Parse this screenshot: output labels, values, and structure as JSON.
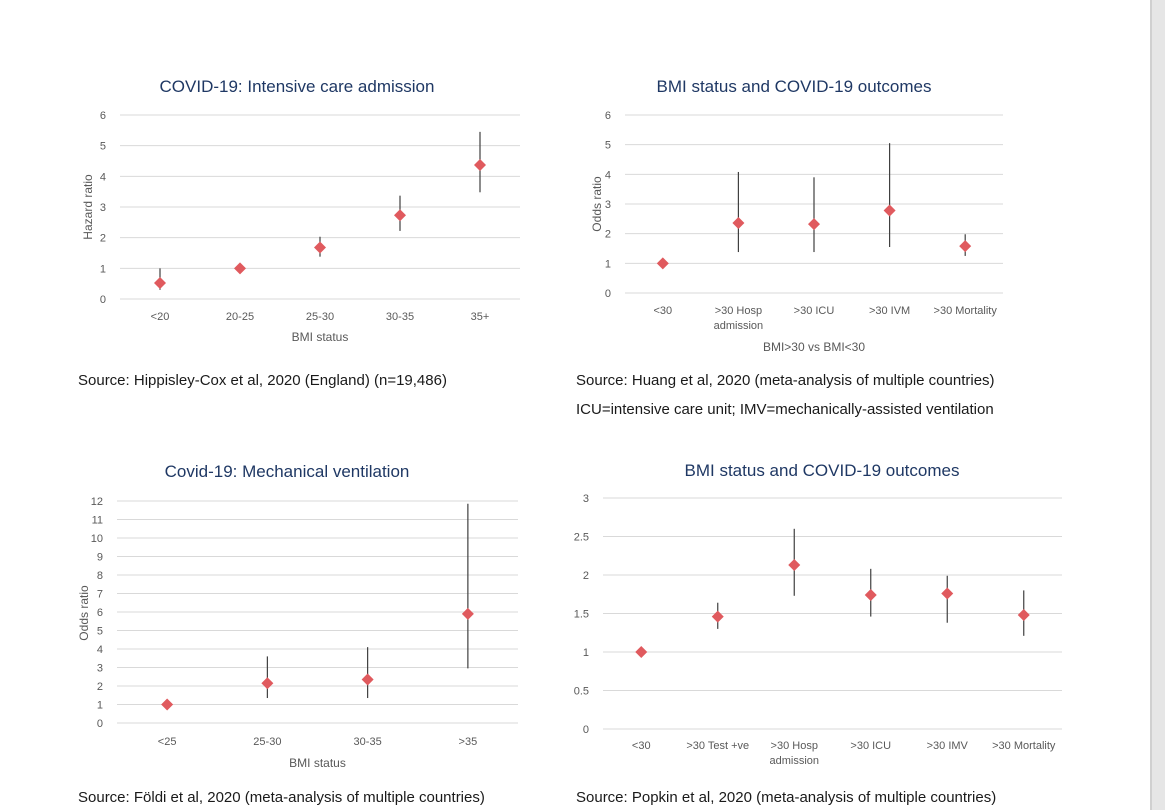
{
  "chart_data": [
    {
      "type": "scatter",
      "title": "COVID-19: Intensive care admission",
      "xlabel": "BMI status",
      "ylabel": "Hazard ratio",
      "ylim": [
        0,
        6
      ],
      "yticks": [
        0,
        1,
        2,
        3,
        4,
        5,
        6
      ],
      "grid": true,
      "categories": [
        [
          "<20"
        ],
        [
          "20-25"
        ],
        [
          "25-30"
        ],
        [
          "30-35"
        ],
        [
          "35+"
        ]
      ],
      "values": [
        0.52,
        1.0,
        1.68,
        2.73,
        4.37
      ],
      "errors": [
        [
          0.3,
          1.0
        ],
        [
          1.0,
          1.0
        ],
        [
          1.38,
          2.03
        ],
        [
          2.22,
          3.37
        ],
        [
          3.48,
          5.45
        ]
      ]
    },
    {
      "type": "scatter",
      "title": "BMI status and COVID-19 outcomes",
      "xlabel": "BMI>30 vs BMI<30",
      "ylabel": "Odds ratio",
      "ylim": [
        0,
        6
      ],
      "yticks": [
        0,
        1,
        2,
        3,
        4,
        5,
        6
      ],
      "grid": true,
      "categories": [
        [
          "<30"
        ],
        [
          ">30 Hosp",
          "admission"
        ],
        [
          ">30 ICU"
        ],
        [
          ">30 IVM"
        ],
        [
          ">30 Mortality"
        ]
      ],
      "values": [
        1.0,
        2.36,
        2.32,
        2.78,
        1.58
      ],
      "errors": [
        [
          1.0,
          1.0
        ],
        [
          1.38,
          4.08
        ],
        [
          1.38,
          3.9
        ],
        [
          1.55,
          5.05
        ],
        [
          1.25,
          1.98
        ]
      ]
    },
    {
      "type": "scatter",
      "title": "Covid-19: Mechanical ventilation",
      "xlabel": "BMI status",
      "ylabel": "Odds ratio",
      "ylim": [
        0,
        12
      ],
      "yticks": [
        0,
        1,
        2,
        3,
        4,
        5,
        6,
        7,
        8,
        9,
        10,
        11,
        12
      ],
      "grid": true,
      "categories": [
        [
          "<25"
        ],
        [
          "25-30"
        ],
        [
          "30-35"
        ],
        [
          ">35"
        ]
      ],
      "values": [
        1.0,
        2.15,
        2.35,
        5.9
      ],
      "errors": [
        [
          1.0,
          1.0
        ],
        [
          1.35,
          3.6
        ],
        [
          1.35,
          4.1
        ],
        [
          2.95,
          11.85
        ]
      ]
    },
    {
      "type": "scatter",
      "title": "BMI status and COVID-19 outcomes",
      "xlabel": "",
      "ylabel": "",
      "ylim": [
        0,
        3
      ],
      "yticks": [
        "0",
        "0.5",
        "1",
        "1.5",
        "2",
        "2.5",
        "3"
      ],
      "grid": true,
      "categories": [
        [
          "<30"
        ],
        [
          ">30 Test +ve"
        ],
        [
          ">30 Hosp",
          "admission"
        ],
        [
          ">30 ICU"
        ],
        [
          ">30 IMV"
        ],
        [
          ">30 Mortality"
        ]
      ],
      "values": [
        1.0,
        1.46,
        2.13,
        1.74,
        1.76,
        1.48
      ],
      "errors": [
        [
          1.0,
          1.0
        ],
        [
          1.3,
          1.64
        ],
        [
          1.73,
          2.6
        ],
        [
          1.46,
          2.08
        ],
        [
          1.38,
          1.99
        ],
        [
          1.21,
          1.8
        ]
      ]
    }
  ],
  "captions": {
    "c1": "Source: Hippisley-Cox et al, 2020 (England) (n=19,486)",
    "c2": "Source: Huang et al, 2020 (meta-analysis of multiple countries)",
    "c2b": "ICU=intensive care unit; IMV=mechanically-assisted ventilation",
    "c3": "Source: Földi et al, 2020 (meta-analysis of multiple countries)",
    "c4": "Source: Popkin et al, 2020 (meta-analysis of multiple countries)"
  }
}
